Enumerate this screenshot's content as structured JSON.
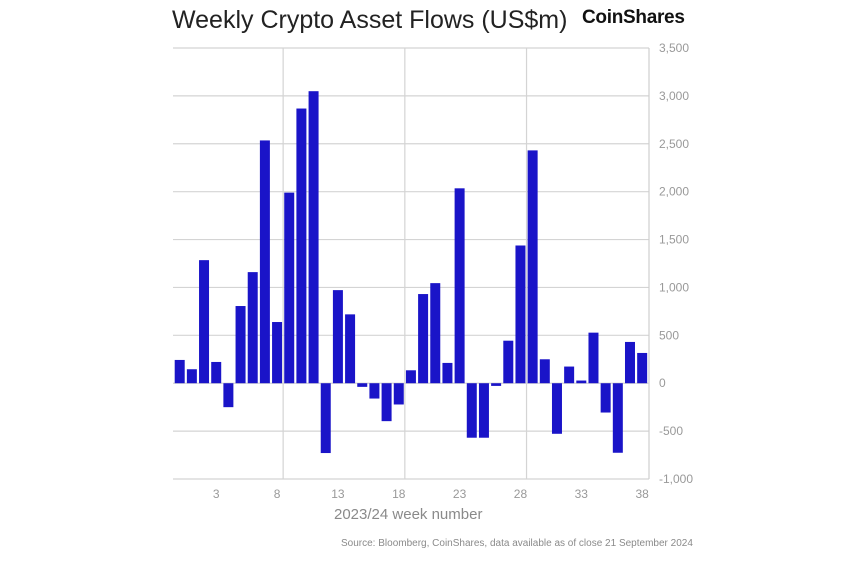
{
  "chart_data": {
    "type": "bar",
    "title": "Weekly Crypto Asset Flows (US$m)",
    "brand": "CoinShares",
    "xlabel": "2023/24 week number",
    "ylabel": "",
    "source": "Source: Bloomberg, CoinShares, data available as of close 21 September 2024",
    "x": [
      0,
      1,
      2,
      3,
      4,
      5,
      6,
      7,
      8,
      9,
      10,
      11,
      12,
      13,
      14,
      15,
      16,
      17,
      18,
      19,
      20,
      21,
      22,
      23,
      24,
      25,
      26,
      27,
      28,
      29,
      30,
      31,
      32,
      33,
      34,
      35,
      36,
      37,
      38
    ],
    "values": [
      243,
      146,
      1285,
      222,
      -250,
      806,
      1160,
      2535,
      639,
      1990,
      2868,
      3049,
      -729,
      972,
      719,
      -38,
      -160,
      -396,
      -222,
      135,
      931,
      1045,
      212,
      2035,
      -569,
      -569,
      -28,
      444,
      1438,
      2431,
      250,
      -528,
      174,
      28,
      528,
      -306,
      -726,
      431,
      316
    ],
    "xticks": [
      "3",
      "8",
      "13",
      "18",
      "23",
      "28",
      "33",
      "38"
    ],
    "xtick_values": [
      3,
      8,
      13,
      18,
      23,
      28,
      33,
      38
    ],
    "yticks": [
      "3,500",
      "3,000",
      "2,500",
      "2,000",
      "1,500",
      "1,000",
      "500",
      "0",
      "-500",
      "-1,000"
    ],
    "ytick_values": [
      3500,
      3000,
      2500,
      2000,
      1500,
      1000,
      500,
      0,
      -500,
      -1000
    ],
    "ylim": [
      -1000,
      3500
    ],
    "grid": true,
    "bar_color": "#1a14c8"
  }
}
